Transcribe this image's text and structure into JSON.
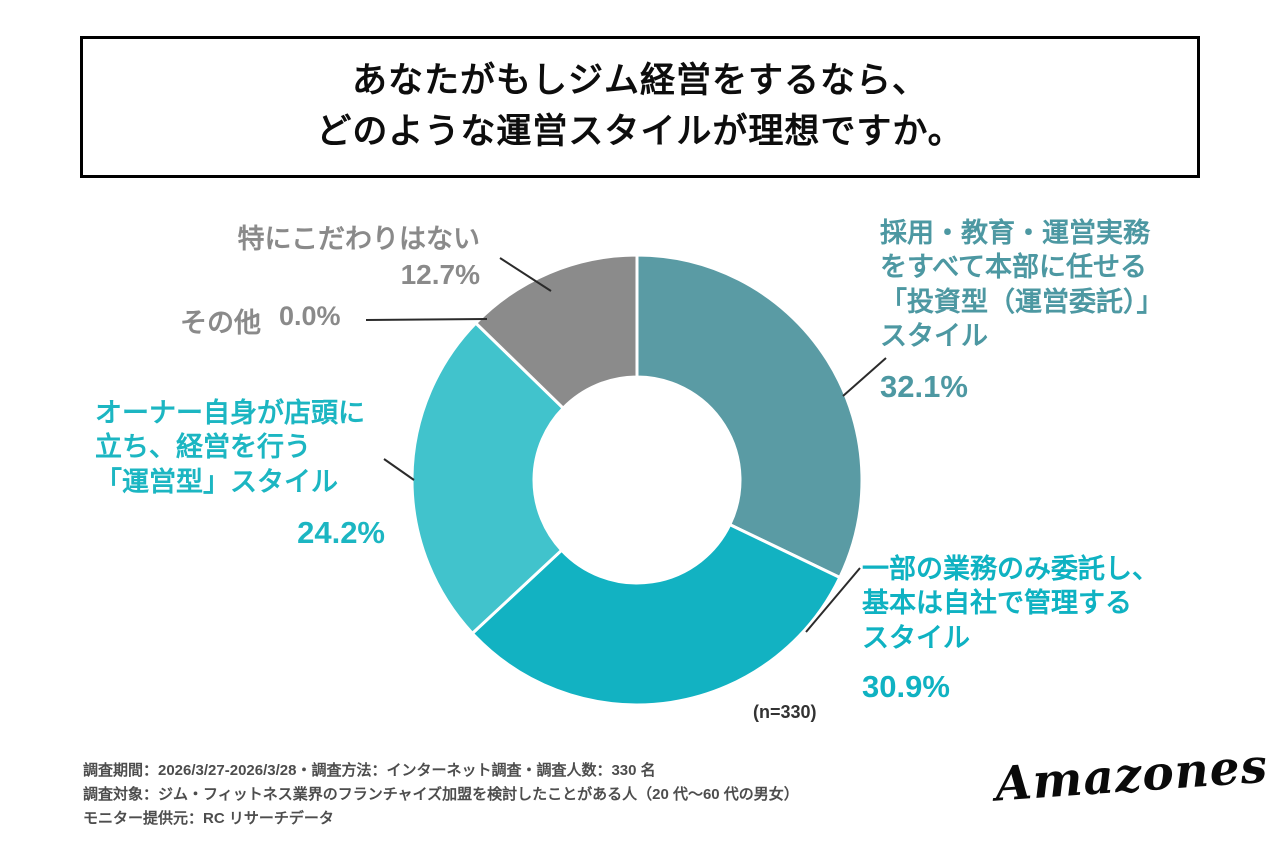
{
  "title": {
    "line1": "あなたがもしジム経営をするなら、",
    "line2": "どのような運営スタイルが理想ですか。"
  },
  "chart_data": {
    "type": "pie",
    "donut": true,
    "start_angle_deg": 0,
    "direction": "clockwise",
    "n_label": "(n=330)",
    "segments": [
      {
        "label": "採用・教育・運営実務をすべて本部に任せる「投資型（運営委託）」スタイル",
        "value": 32.1,
        "pct_label": "32.1%",
        "color": "#5a9ba4",
        "display_lines": [
          "採用・教育・運営実務",
          "をすべて本部に任せる",
          "「投資型（運営委託）」",
          "スタイル"
        ]
      },
      {
        "label": "一部の業務のみ委託し、基本は自社で管理するスタイル",
        "value": 30.9,
        "pct_label": "30.9%",
        "color": "#12b2c2",
        "display_lines": [
          "一部の業務のみ委託し、",
          "基本は自社で管理する",
          "スタイル"
        ]
      },
      {
        "label": "オーナー自身が店頭に立ち、経営を行う「運営型」スタイル",
        "value": 24.2,
        "pct_label": "24.2%",
        "color": "#41c3cc",
        "display_lines": [
          "オーナー自身が店頭に",
          "立ち、経営を行う",
          "「運営型」スタイル"
        ]
      },
      {
        "label": "その他",
        "value": 0.0,
        "pct_label": "0.0%",
        "color": "#999999",
        "display_lines": [
          "その他"
        ]
      },
      {
        "label": "特にこだわりはない",
        "value": 12.7,
        "pct_label": "12.7%",
        "color": "#8b8b8b",
        "display_lines": [
          "特にこだわりはない"
        ]
      }
    ]
  },
  "footer": {
    "line1": "調査期間：2026/3/27-2026/3/28・調査方法：インターネット調査・調査人数：330 名",
    "line2": "調査対象：ジム・フィットネス業界のフランチャイズ加盟を検討したことがある人（20 代〜60 代の男女）",
    "line3": "モニター提供元：RC リサーチデータ"
  },
  "logo": {
    "text": "Amazones"
  }
}
